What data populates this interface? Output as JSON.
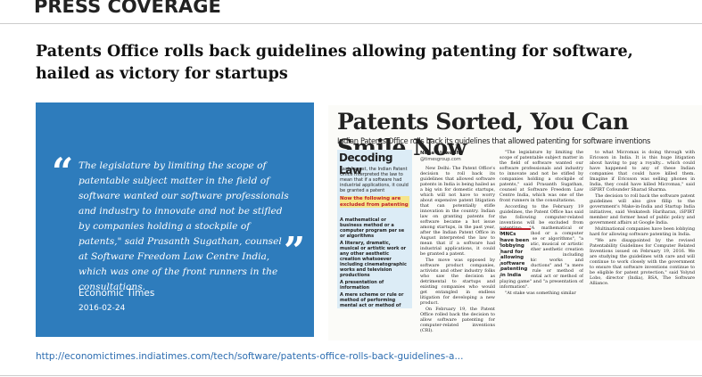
{
  "header": {
    "title": "PRESS COVERAGE"
  },
  "article": {
    "title": "Patents Office rolls back guidelines allowing patenting for software, hailed as victory for startups"
  },
  "quote": {
    "open": "“",
    "close": "”",
    "text": "The legislature by limiting the scope of patentable subject matter in the field of software wanted our software professionals and industry to innovate and not be stifled by companies holding a stockpile of patents,\" said Prasanth Sugathan, counsel at Software Freedom Law Centre India, which was one of the front runners in the consultations.",
    "source": "Economic Times",
    "date": "2016-02-24"
  },
  "clipping": {
    "headline": "Patents Sorted, You Can Smile Now",
    "subhead": "Indian Patents Office rolls back its guidelines that allowed patenting for software inventions",
    "sidebar": {
      "title": "Decoding Law",
      "intro": "Last August, the Indian Patent Office interpreted the law to mean that if a software had industrial applications, it could be granted a patent",
      "excluded": "Now the following are excluded from patenting",
      "items": [
        "A mathematical or business method or a computer program per se or algorithms",
        "A literary, dramatic, musical or artistic work or any other aesthetic creation whatsoever including cinematographic works and television productions",
        "A presentation of information",
        "A mere scheme or rule or method of performing mental act or method of playing game"
      ]
    },
    "byline": {
      "name": "Neha Alawadhi",
      "email": "@timesgroup.com"
    },
    "columns": [
      [
        "New Delhi: The Patent Office's decision to roll back its guidelines that allowed software patents in India is being hailed as a big win for domestic startups, which will not have to worry about expensive patent litigation that can potentially stifle innovation in the country. Indian law on granting patents for software became a hot issue among startups, in the past year, after the Indian Patent Office in August interpreted the law to mean that if a software had industrial applications, it could be granted a patent.",
        "The move was opposed by software product companies, activists and other industry folks who saw the decision as detrimental to startups and existing companies who would get entangled in endless litigation for developing a new product.",
        "On February 19, the Patent Office rolled back the decision to allow software patenting for computer-related inventions (CRI)."
      ],
      [
        "\"The legislature by limiting the scope of patentable subject matter in the field of software wanted our software professionals and industry to innovate and not be stifled by companies holding a stockpile of patents,\" said Prasanth Sugathan, counsel at Software Freedom Law Centre India, which was one of the front runners in the consultations.",
        "According to the February 19 guidelines, the Patent Office has said the following computer-related inventions will be excluded from patenting: \"A mathematical or business method or a computer program per se or algorithms\", \"a literary, dramatic, musical or artistic work or any other aesthetic creation whatsoever including cinematographic works and television productions\" and \"a mere scheme or rule or method of performing mental act or method of playing game\" and \"a presentation of information\".",
        "\"At stake was something similar"
      ],
      [
        "to what Micromax is doing through with Ericsson in India. It is this huge litigation about having to pay a royalty... which could have happened to any of these Indian companies that could have killed them. Imagine if Ericsson was selling phones in India, they could have killed Micromax,\" said iSPIRT Cofounder Sharad Sharma.",
        "The decision to roll back the software patent guidelines will also give fillip to the government's Make-in-India and Startup India initiatives, said Venkatesh Hariharan, iSPIRT member and former head of public policy and government affairs at Google India.",
        "Multinational companies have been lobbying hard for allowing software patenting in India.",
        "\"We are disappointed by the revised Patentability Guidelines for Computer Related Inventions issued on February 19, 2016. We are studying the guidelines with care and will continue to work closely with the government to ensure that software inventions continue to be eligible for patent protection,\" said Yolynd Lobo, director (India), BSA, The Software Alliance."
      ]
    ],
    "pullquote": "MNCs have been lobbying hard for allowing software patenting in India"
  },
  "link": "http://economictimes.indiatimes.com/tech/software/patents-office-rolls-back-guidelines-a..."
}
